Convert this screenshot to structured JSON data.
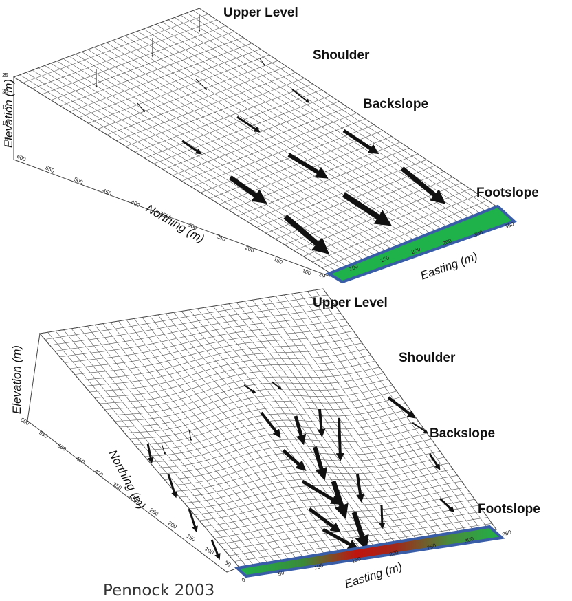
{
  "panels": [
    {
      "labels": [
        "Upper Level",
        "Shoulder",
        "Backslope",
        "Footslope"
      ],
      "elevation_axis": {
        "title": "Elevation (m)",
        "ticks": [
          "25",
          "20",
          "15",
          "10",
          "5"
        ]
      },
      "northing_axis": {
        "title": "Northing (m)",
        "ticks": [
          "600",
          "550",
          "500",
          "450",
          "400",
          "350",
          "300",
          "250",
          "200",
          "150",
          "100"
        ]
      },
      "easting_axis": {
        "title": "Easting (m)",
        "ticks": [
          "50",
          "100",
          "150",
          "200",
          "250",
          "300",
          "350"
        ]
      }
    },
    {
      "labels": [
        "Upper Level",
        "Shoulder",
        "Backslope",
        "Footslope"
      ],
      "elevation_axis": {
        "title": "Elevation (m)"
      },
      "northing_axis": {
        "title": "Northing (m)",
        "ticks": [
          "600",
          "550",
          "500",
          "450",
          "400",
          "350",
          "300",
          "250",
          "200",
          "150",
          "100",
          "50"
        ]
      },
      "easting_axis": {
        "title": "Easting (m)",
        "ticks": [
          "0",
          "50",
          "100",
          "150",
          "200",
          "250",
          "300",
          "350"
        ]
      }
    }
  ],
  "caption": "Pennock 2003"
}
